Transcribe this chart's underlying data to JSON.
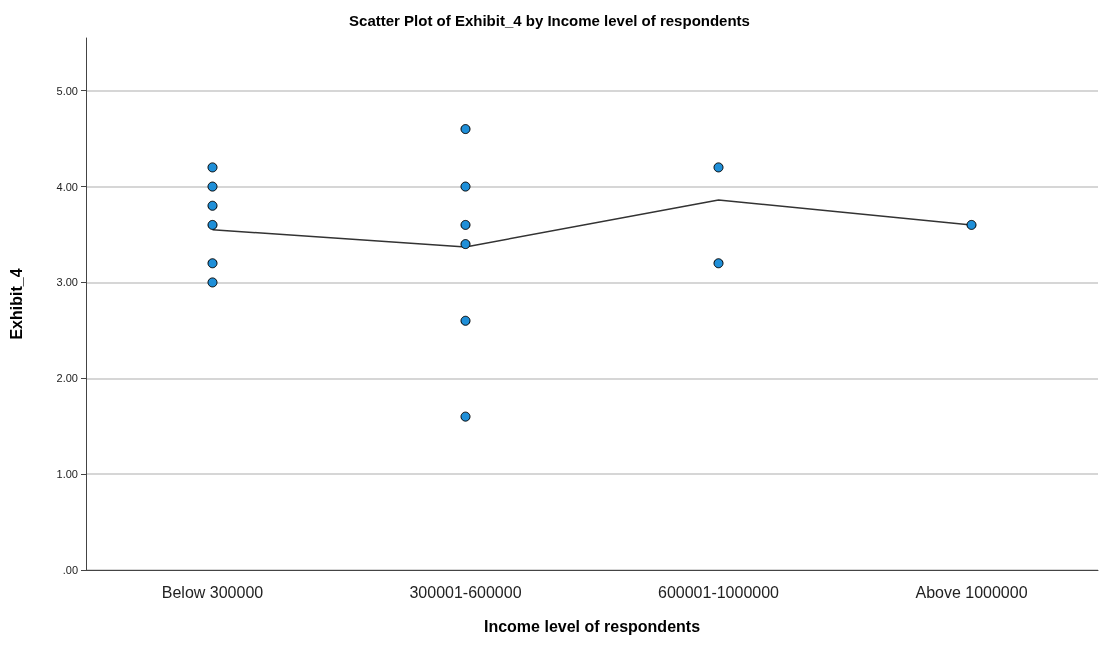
{
  "chart_data": {
    "type": "scatter",
    "title": "Scatter Plot of Exhibit_4 by Income level of respondents",
    "xlabel": "Income level of respondents",
    "ylabel": "Exhibit_4",
    "categories": [
      "Below 300000",
      "300001-600000",
      "600001-1000000",
      "Above 1000000"
    ],
    "series": [
      {
        "marker": "circle",
        "color": "#1f8fd8",
        "x": [
          "Below 300000",
          "Below 300000",
          "Below 300000",
          "Below 300000",
          "Below 300000",
          "Below 300000",
          "300001-600000",
          "300001-600000",
          "300001-600000",
          "300001-600000",
          "300001-600000",
          "300001-600000",
          "600001-1000000",
          "600001-1000000",
          "Above 1000000"
        ],
        "values": [
          4.2,
          4.0,
          3.8,
          3.6,
          3.2,
          3.0,
          4.6,
          4.0,
          3.6,
          3.4,
          2.6,
          1.6,
          4.2,
          3.2,
          3.6
        ]
      },
      {
        "type": "line",
        "marker": "none",
        "color": "#333333",
        "values": [
          3.55,
          3.37,
          3.86,
          3.6
        ]
      }
    ],
    "ylim": [
      0,
      5.55
    ],
    "yticks": [
      {
        "value": 0,
        "label": ".00"
      },
      {
        "value": 1,
        "label": "1.00"
      },
      {
        "value": 2,
        "label": "2.00"
      },
      {
        "value": 3,
        "label": "3.00"
      },
      {
        "value": 4,
        "label": "4.00"
      },
      {
        "value": 5,
        "label": "5.00"
      }
    ],
    "grid": "y"
  }
}
